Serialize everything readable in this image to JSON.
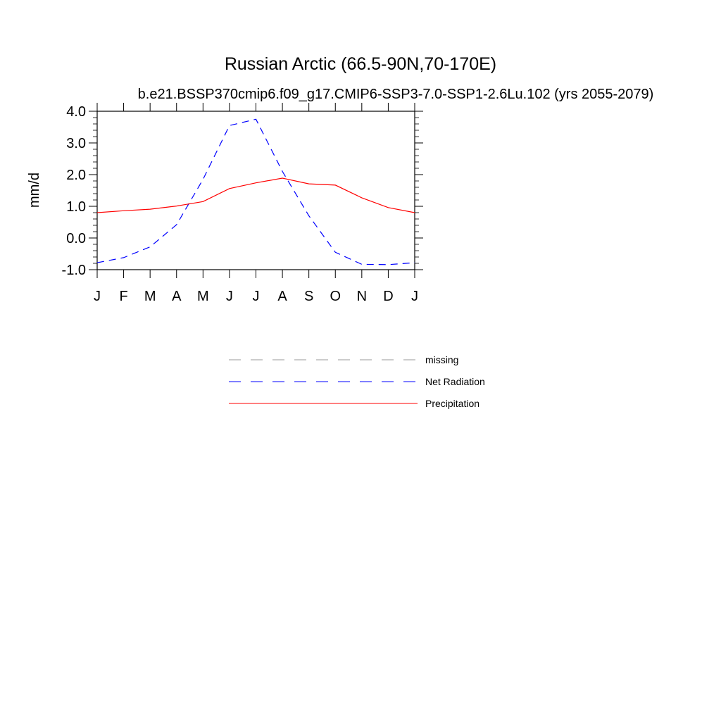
{
  "chart_data": {
    "type": "line",
    "title": "Russian Arctic (66.5-90N,70-170E)",
    "subtitle": "b.e21.BSSP370cmip6.f09_g17.CMIP6-SSP3-7.0-SSP1-2.6Lu.102 (yrs 2055-2079)",
    "ylabel": "mm/d",
    "xlabel": "",
    "ylim": [
      -1.0,
      4.0
    ],
    "yticks": [
      "4.0",
      "3.0",
      "2.0",
      "1.0",
      "0.0",
      "-1.0"
    ],
    "ytick_values": [
      4.0,
      3.0,
      2.0,
      1.0,
      0.0,
      -1.0
    ],
    "categories": [
      "J",
      "F",
      "M",
      "A",
      "M",
      "J",
      "J",
      "A",
      "S",
      "O",
      "N",
      "D",
      "J"
    ],
    "series": [
      {
        "name": "Net Radiation",
        "color": "#0000ff",
        "style": "dashed",
        "values": [
          -0.78,
          -0.62,
          -0.28,
          0.42,
          1.85,
          3.55,
          3.75,
          2.1,
          0.7,
          -0.45,
          -0.83,
          -0.84,
          -0.78
        ]
      },
      {
        "name": "Precipitation",
        "color": "#ff0000",
        "style": "solid",
        "values": [
          0.8,
          0.86,
          0.91,
          1.01,
          1.15,
          1.56,
          1.74,
          1.89,
          1.71,
          1.67,
          1.27,
          0.96,
          0.8
        ]
      }
    ],
    "legend": [
      {
        "label": "missing",
        "color": "#999999",
        "style": "dashed"
      },
      {
        "label": "Net Radiation",
        "color": "#0000ff",
        "style": "dashed"
      },
      {
        "label": "Precipitation",
        "color": "#ff0000",
        "style": "solid"
      }
    ],
    "legend_position": "below"
  }
}
